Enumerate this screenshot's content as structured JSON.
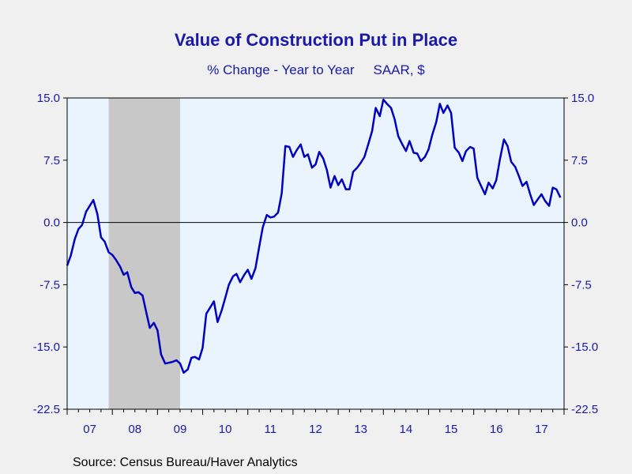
{
  "chart_data": {
    "type": "line",
    "title": "Value of Construction Put in Place",
    "subtitle_left": "% Change - Year to Year",
    "subtitle_right": "SAAR, $",
    "source": "Source:  Census Bureau/Haver Analytics",
    "ylim": [
      -22.5,
      15.0
    ],
    "y_ticks": [
      15.0,
      7.5,
      0.0,
      -7.5,
      -15.0,
      -22.5
    ],
    "y_tick_labels": [
      "15.0",
      "7.5",
      "0.0",
      "-7.5",
      "-15.0",
      "-22.5"
    ],
    "x_start": 2007.0,
    "x_end": 2018.0,
    "x_tick_labels": [
      "07",
      "08",
      "09",
      "10",
      "11",
      "12",
      "13",
      "14",
      "15",
      "16",
      "17"
    ],
    "recession_band": [
      2007.92,
      2009.5
    ],
    "grid": false,
    "zero_line": true,
    "colors": {
      "line": "#0000c0",
      "plot_bg": "#eaf4ff",
      "recession": "#c8c8c8",
      "text": "#1a1aa6"
    },
    "series": [
      {
        "x": [
          2007.0,
          2007.08,
          2007.17,
          2007.25,
          2007.33,
          2007.42,
          2007.5,
          2007.58,
          2007.67,
          2007.75,
          2007.83,
          2007.92,
          2008.0,
          2008.08,
          2008.17,
          2008.25,
          2008.33,
          2008.42,
          2008.5,
          2008.58,
          2008.67,
          2008.75,
          2008.83,
          2008.92,
          2009.0,
          2009.08,
          2009.17,
          2009.25,
          2009.33,
          2009.42,
          2009.5,
          2009.58,
          2009.67,
          2009.75,
          2009.83,
          2009.92,
          2010.0,
          2010.08,
          2010.17,
          2010.25,
          2010.33,
          2010.42,
          2010.5,
          2010.58,
          2010.67,
          2010.75,
          2010.83,
          2010.92,
          2011.0,
          2011.08,
          2011.17,
          2011.25,
          2011.33,
          2011.42,
          2011.5,
          2011.58,
          2011.67,
          2011.75,
          2011.83,
          2011.92,
          2012.0,
          2012.08,
          2012.17,
          2012.25,
          2012.33,
          2012.42,
          2012.5,
          2012.58,
          2012.67,
          2012.75,
          2012.83,
          2012.92,
          2013.0,
          2013.08,
          2013.17,
          2013.25,
          2013.33,
          2013.42,
          2013.5,
          2013.58,
          2013.67,
          2013.75,
          2013.83,
          2013.92,
          2014.0,
          2014.08,
          2014.17,
          2014.25,
          2014.33,
          2014.42,
          2014.5,
          2014.58,
          2014.67,
          2014.75,
          2014.83,
          2014.92,
          2015.0,
          2015.08,
          2015.17,
          2015.25,
          2015.33,
          2015.42,
          2015.5,
          2015.58,
          2015.67,
          2015.75,
          2015.83,
          2015.92,
          2016.0,
          2016.08,
          2016.17,
          2016.25,
          2016.33,
          2016.42,
          2016.5,
          2016.58,
          2016.67,
          2016.75,
          2016.83,
          2016.92,
          2017.0,
          2017.08,
          2017.17,
          2017.25,
          2017.33,
          2017.42,
          2017.5,
          2017.58,
          2017.67,
          2017.75,
          2017.83,
          2017.92
        ],
        "values": [
          -5.2,
          -4.0,
          -2.0,
          -0.8,
          -0.3,
          1.3,
          2.0,
          2.7,
          1.0,
          -1.8,
          -2.3,
          -3.6,
          -3.9,
          -4.5,
          -5.3,
          -6.3,
          -6.0,
          -7.8,
          -8.5,
          -8.4,
          -8.8,
          -10.8,
          -12.7,
          -12.1,
          -13.0,
          -15.9,
          -17.0,
          -16.9,
          -16.8,
          -16.6,
          -17.0,
          -18.1,
          -17.7,
          -16.3,
          -16.2,
          -16.5,
          -15.1,
          -11.0,
          -10.2,
          -9.5,
          -12.0,
          -10.6,
          -9.1,
          -7.5,
          -6.5,
          -6.2,
          -7.2,
          -6.3,
          -5.7,
          -6.8,
          -5.5,
          -3.0,
          -0.6,
          0.9,
          0.6,
          0.7,
          1.2,
          3.5,
          9.2,
          9.1,
          7.9,
          8.7,
          9.4,
          7.9,
          8.2,
          6.6,
          7.0,
          8.5,
          7.7,
          6.3,
          4.2,
          5.6,
          4.5,
          5.2,
          4.0,
          4.0,
          6.1,
          6.6,
          7.2,
          7.9,
          9.5,
          11.0,
          13.8,
          12.8,
          14.8,
          14.3,
          13.8,
          12.4,
          10.4,
          9.4,
          8.6,
          9.8,
          8.4,
          8.3,
          7.4,
          7.9,
          8.8,
          10.5,
          12.1,
          14.3,
          13.2,
          14.1,
          13.2,
          9.0,
          8.4,
          7.4,
          8.6,
          9.1,
          8.9,
          5.4,
          4.3,
          3.4,
          4.8,
          4.1,
          5.1,
          7.6,
          10.0,
          9.2,
          7.3,
          6.7,
          5.6,
          4.4,
          4.9,
          3.4,
          2.1,
          2.8,
          3.4,
          2.6,
          2.0,
          4.2,
          4.0,
          3.0
        ]
      }
    ]
  }
}
